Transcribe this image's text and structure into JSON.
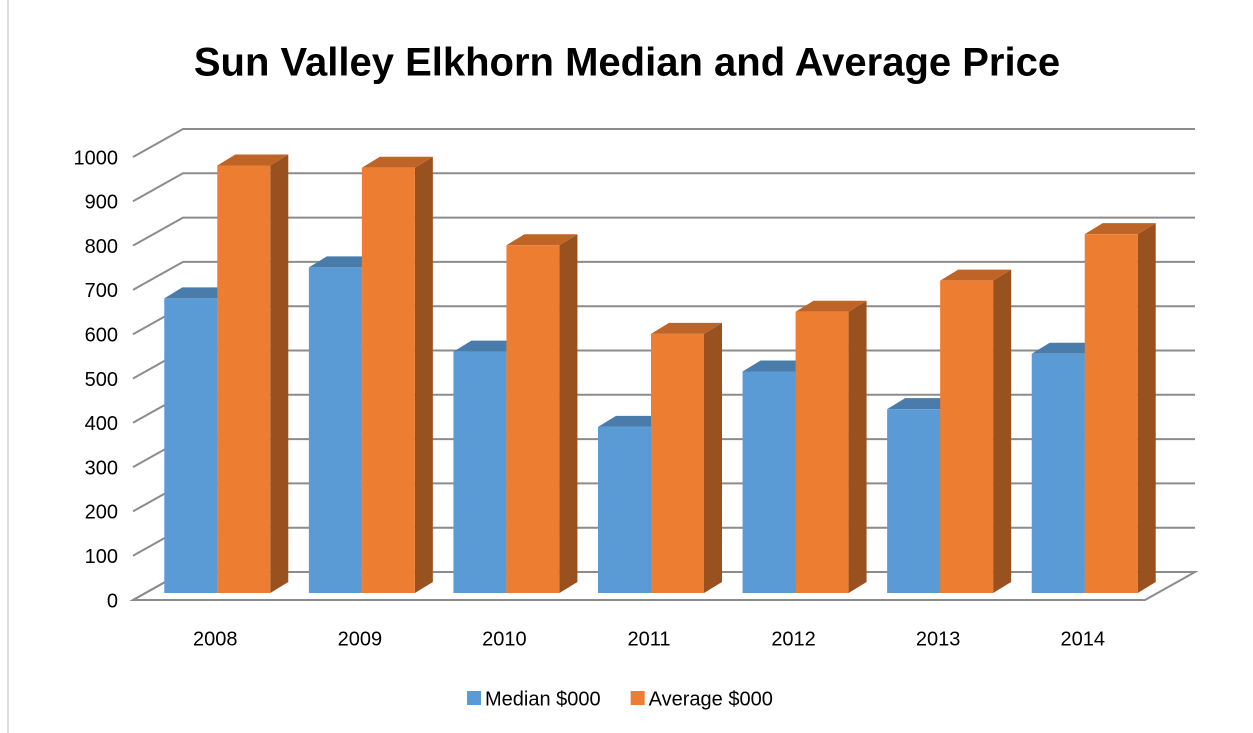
{
  "chart_data": {
    "type": "bar3d",
    "title": "Sun Valley Elkhorn Median and Average Price",
    "categories": [
      "2008",
      "2009",
      "2010",
      "2011",
      "2012",
      "2013",
      "2014"
    ],
    "series": [
      {
        "name": "Median $000",
        "color": "#5b9bd5",
        "values": [
          665,
          735,
          545,
          375,
          500,
          415,
          540
        ]
      },
      {
        "name": "Average $000",
        "color": "#ed7d31",
        "values": [
          965,
          960,
          785,
          585,
          635,
          705,
          810
        ]
      }
    ],
    "ylim": [
      0,
      1000
    ],
    "yticks": [
      0,
      100,
      200,
      300,
      400,
      500,
      600,
      700,
      800,
      900,
      1000
    ],
    "grid": true,
    "legend": "bottom"
  }
}
